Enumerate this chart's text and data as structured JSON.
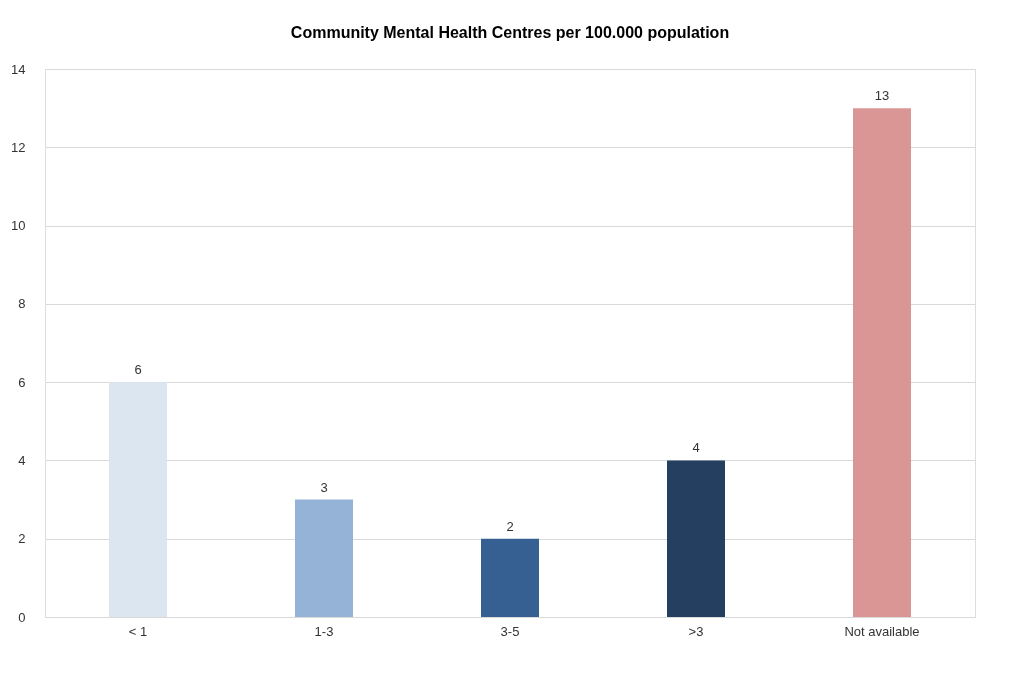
{
  "chart_data": {
    "type": "bar",
    "title": "Community Mental Health Centres per 100.000 population",
    "categories": [
      "< 1",
      "1-3",
      "3-5",
      ">3",
      "Not available"
    ],
    "values": [
      6,
      3,
      2,
      4,
      13
    ],
    "colors": [
      "#dce6f1",
      "#95b3d7",
      "#366092",
      "#243f60",
      "#da9694"
    ],
    "ylim": [
      0,
      14
    ],
    "yticks": [
      0,
      2,
      4,
      6,
      8,
      10,
      12,
      14
    ],
    "grid": "y",
    "data_labels": true,
    "legend": false
  }
}
